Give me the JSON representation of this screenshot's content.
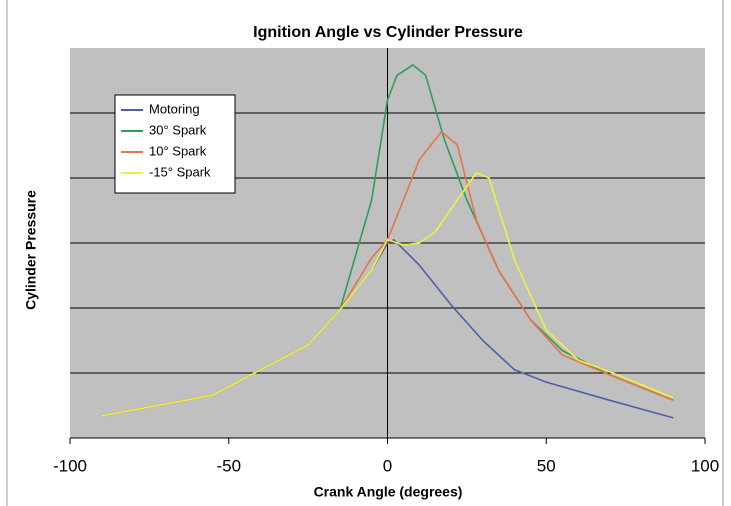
{
  "chart_data": {
    "type": "line",
    "title": "Ignition Angle vs Cylinder Pressure",
    "x_label": "Crank Angle (degrees)",
    "y_label": "Cylinder Pressure",
    "xlim": [
      -100,
      100
    ],
    "xticks": [
      -100,
      -50,
      0,
      50,
      100
    ],
    "ylim": [
      0,
      6
    ],
    "yticks": [
      1,
      2,
      3,
      4,
      5
    ],
    "ytick_labels": false,
    "grid": true,
    "legend": "upper left",
    "series": [
      {
        "name": "Motoring",
        "color": "#4f5fa8",
        "x": [
          -90,
          -55,
          -40,
          -25,
          -15,
          -5,
          0,
          2,
          10,
          20,
          30,
          40,
          50,
          70,
          90
        ],
        "values": [
          0.34,
          0.66,
          1.05,
          1.43,
          1.97,
          2.58,
          3.0,
          3.05,
          2.66,
          2.05,
          1.5,
          1.05,
          0.86,
          0.58,
          0.31
        ]
      },
      {
        "name": "30° Spark",
        "color": "#2e9e5b",
        "x": [
          -90,
          -55,
          -40,
          -25,
          -15,
          -5,
          0,
          3,
          8,
          12,
          18,
          25,
          35,
          45,
          55,
          70,
          90
        ],
        "values": [
          0.34,
          0.66,
          1.05,
          1.43,
          1.97,
          3.66,
          5.2,
          5.58,
          5.74,
          5.58,
          4.58,
          3.66,
          2.58,
          1.82,
          1.35,
          0.97,
          0.58
        ]
      },
      {
        "name": "10° Spark",
        "color": "#e8744a",
        "x": [
          -90,
          -55,
          -40,
          -25,
          -15,
          -5,
          0,
          5,
          10,
          17,
          22,
          28,
          35,
          45,
          55,
          70,
          90
        ],
        "values": [
          0.34,
          0.66,
          1.05,
          1.43,
          1.97,
          2.77,
          3.05,
          3.66,
          4.28,
          4.71,
          4.51,
          3.35,
          2.58,
          1.82,
          1.28,
          0.97,
          0.58
        ]
      },
      {
        "name": "-15° Spark",
        "color": "#f0f040",
        "x": [
          -90,
          -55,
          -40,
          -25,
          -15,
          -5,
          0,
          5,
          10,
          15,
          22,
          28,
          32,
          40,
          50,
          60,
          70,
          90
        ],
        "values": [
          0.34,
          0.66,
          1.05,
          1.43,
          1.97,
          2.58,
          3.05,
          2.97,
          3.0,
          3.17,
          3.66,
          4.08,
          4.0,
          2.74,
          1.66,
          1.2,
          1.02,
          0.62
        ]
      }
    ]
  }
}
